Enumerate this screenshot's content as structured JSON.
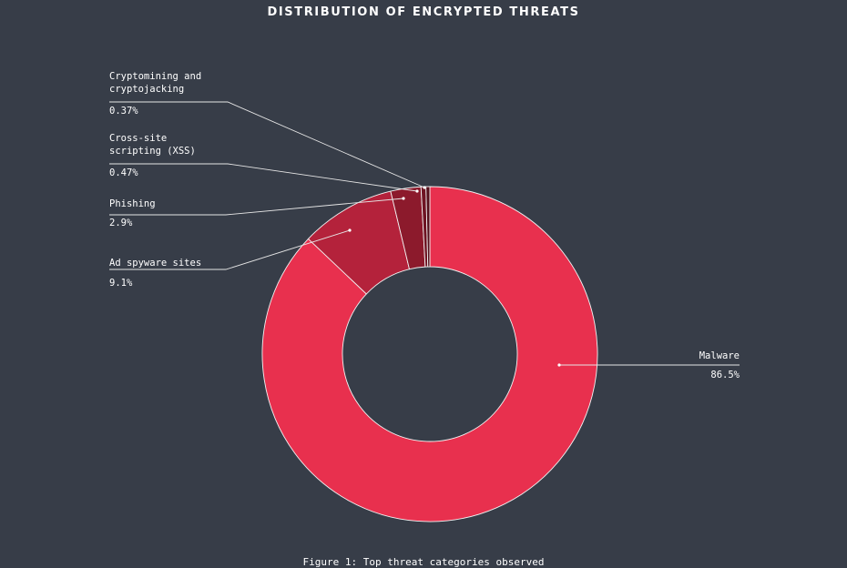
{
  "chart_data": {
    "type": "pie",
    "donut": true,
    "title": "DISTRIBUTION OF ENCRYPTED THREATS",
    "caption": "Figure 1: Top threat categories observed",
    "slices": [
      {
        "name": "Malware",
        "value": 86.5,
        "label": "86.5%",
        "color": "#e8304e"
      },
      {
        "name": "Ad spyware sites",
        "value": 9.1,
        "label": "9.1%",
        "color": "#b4223b"
      },
      {
        "name": "Phishing",
        "value": 2.9,
        "label": "2.9%",
        "color": "#8c1a2c"
      },
      {
        "name": "Cross-site scripting (XSS)",
        "value": 0.47,
        "label": "0.47%",
        "color": "#6e1423"
      },
      {
        "name": "Cryptomining and cryptojacking",
        "value": 0.37,
        "label": "0.37%",
        "color": "#55101c"
      }
    ],
    "colors": {
      "background": "#373d48",
      "slice_border": "#f2f2f2",
      "leader": "#e6e6e6",
      "text": "#ffffff"
    }
  }
}
